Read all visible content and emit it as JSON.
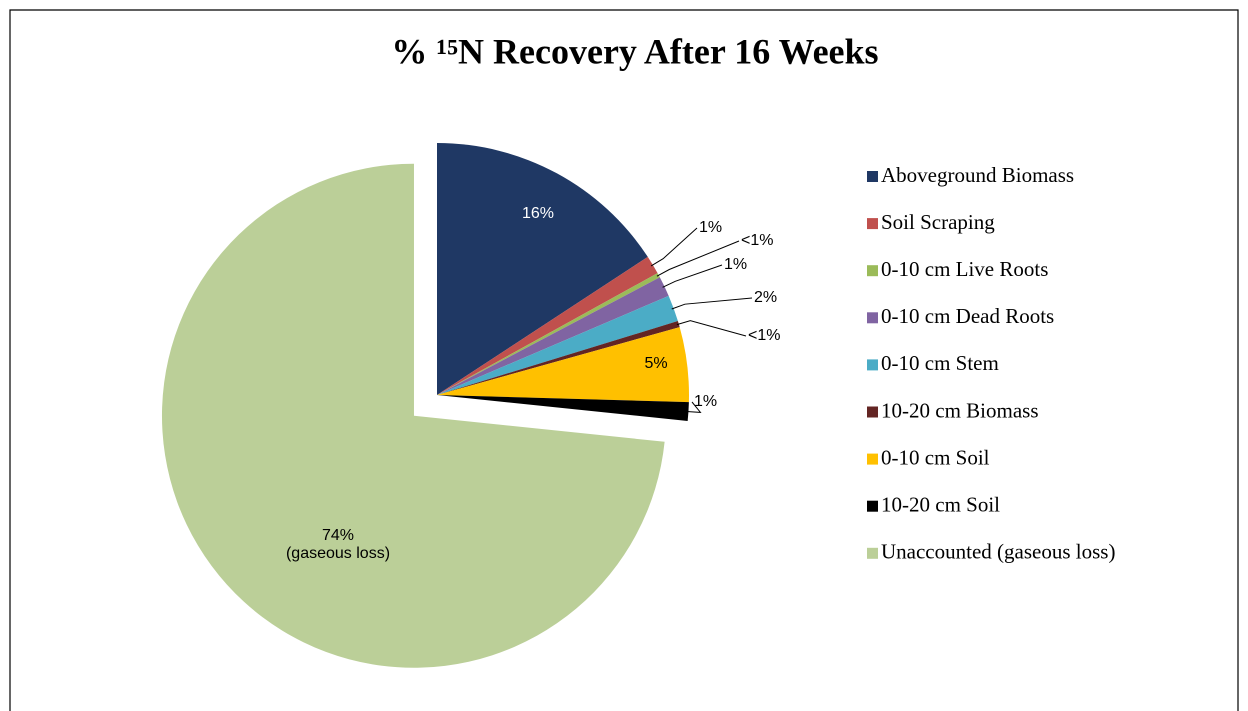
{
  "chart_data": {
    "type": "pie",
    "title": "% ¹⁵N Recovery After 16 Weeks",
    "categories": [
      "Aboveground Biomass",
      "Soil Scraping",
      "0-10 cm Live Roots",
      "0-10 cm Dead Roots",
      "0-10 cm Stem",
      "10-20 cm Biomass",
      "0-10 cm Soil",
      "10-20 cm Soil",
      "Unaccounted (gaseous loss)"
    ],
    "values": [
      15.8,
      1.2,
      0.3,
      1.3,
      1.7,
      0.4,
      4.8,
      1.2,
      73.5
    ],
    "value_labels": [
      "16%",
      "1%",
      "<1%",
      "1%",
      "2%",
      "<1%",
      "5%",
      "1%",
      "74%\n(gaseous loss)"
    ],
    "colors": [
      "#1f3864",
      "#c0504d",
      "#9bbb59",
      "#8064a2",
      "#4bacc6",
      "#632523",
      "#ffc000",
      "#000000",
      "#bbcf98"
    ],
    "legend": "right"
  }
}
